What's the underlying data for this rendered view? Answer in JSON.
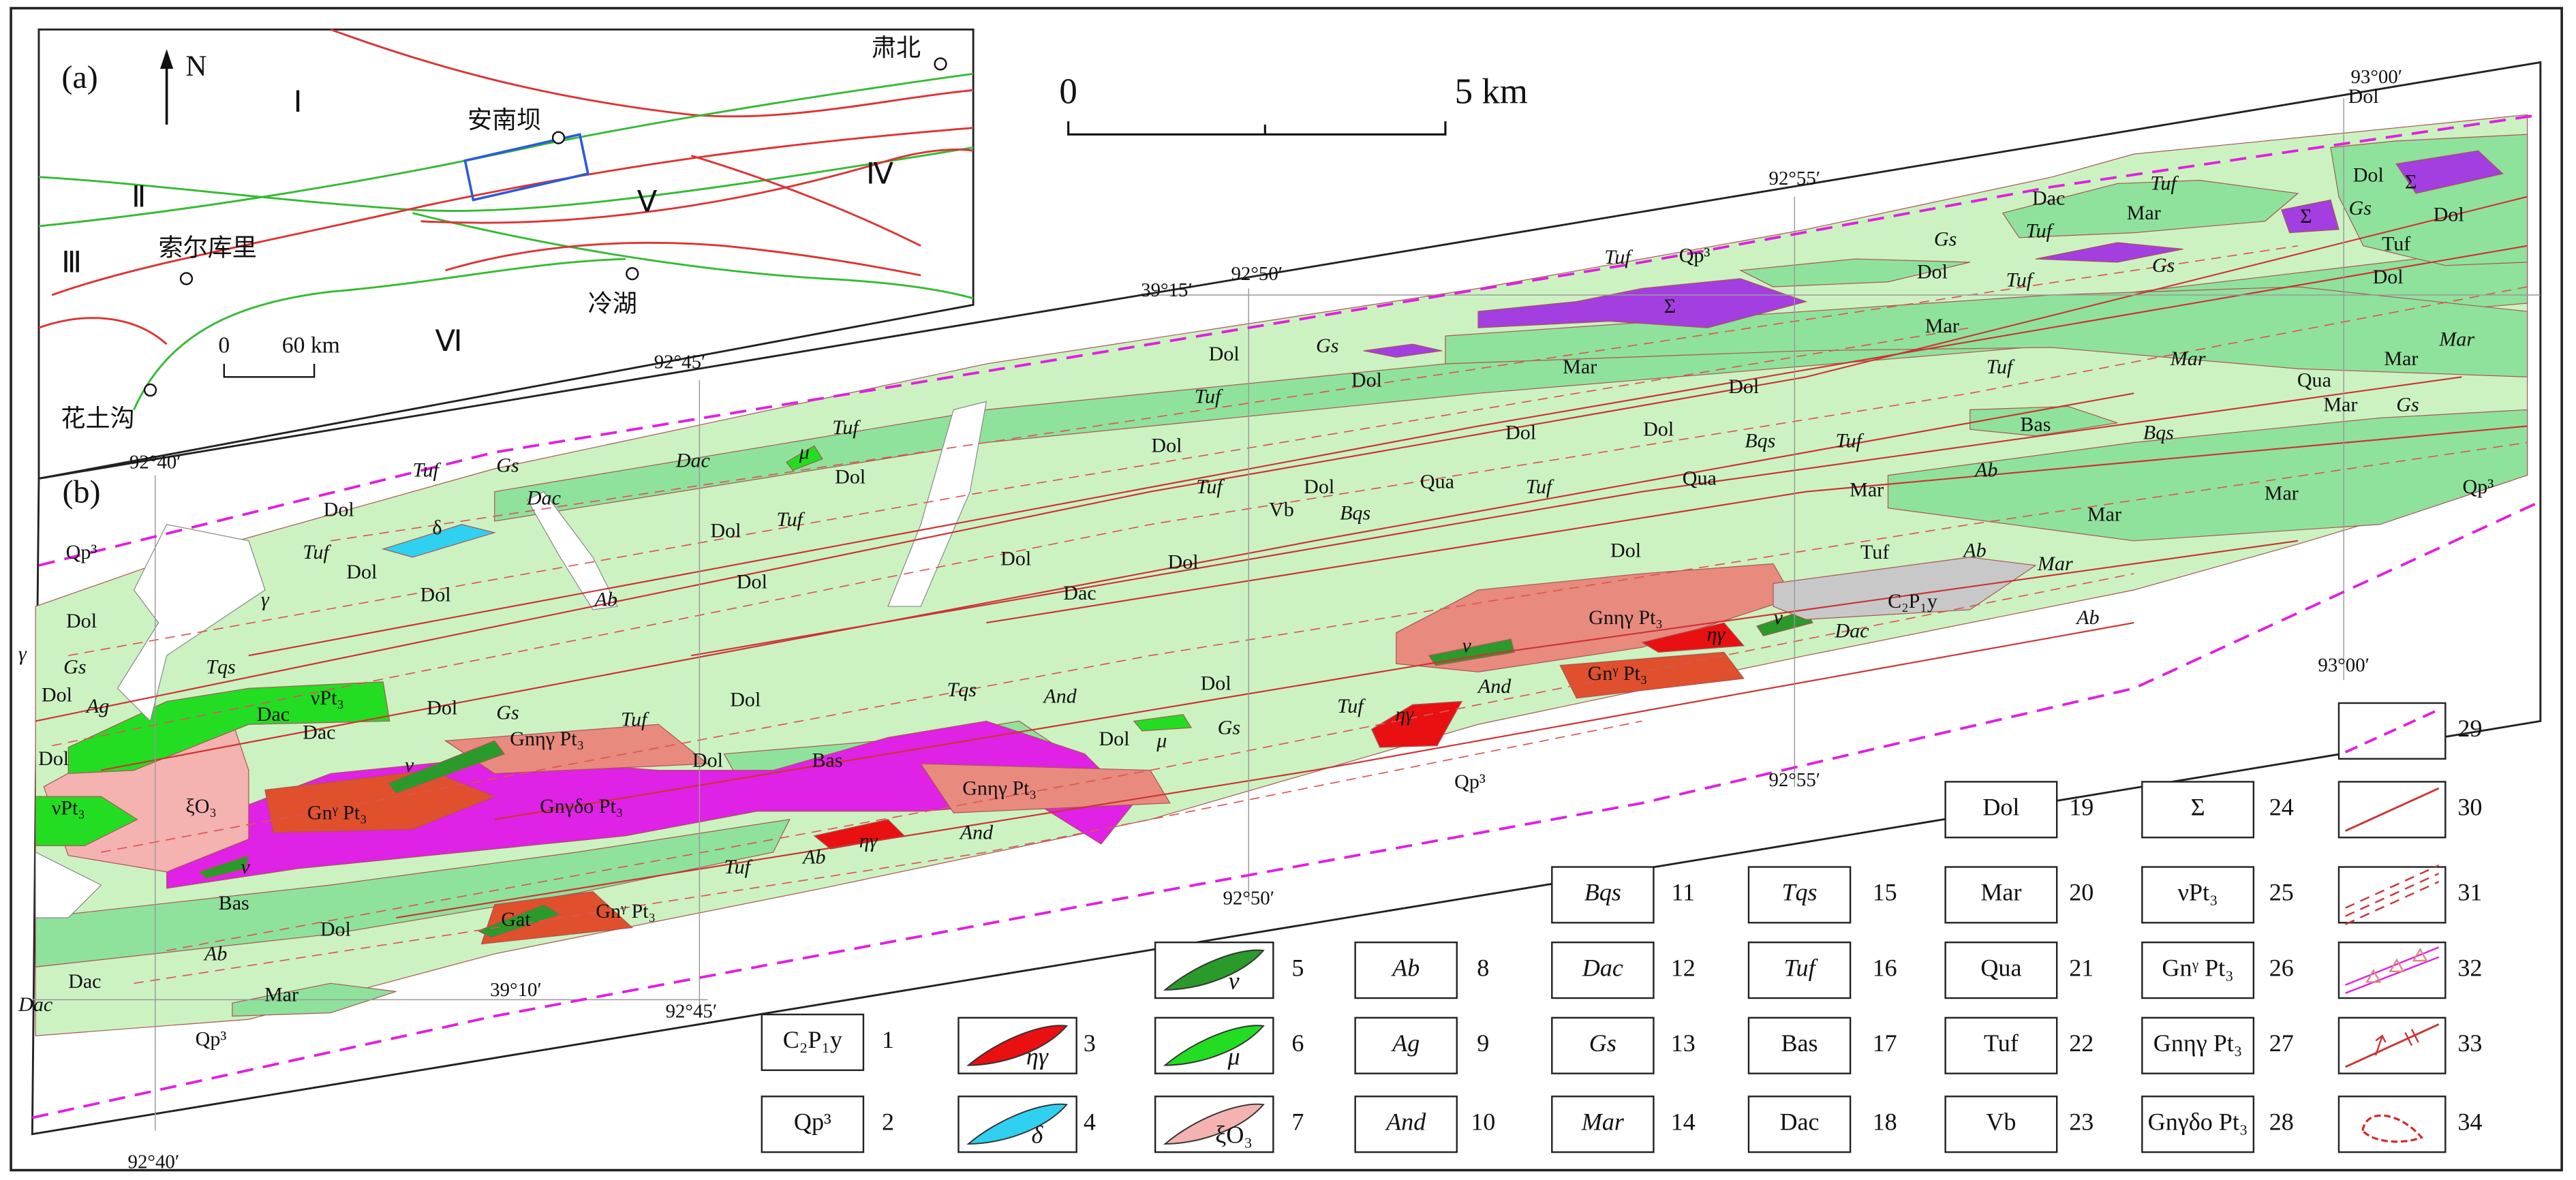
{
  "inset": {
    "panel_label": "(a)",
    "north": "N",
    "regions": [
      "Ⅰ",
      "Ⅱ",
      "Ⅲ",
      "Ⅳ",
      "Ⅴ",
      "Ⅵ"
    ],
    "places": [
      "肃北",
      "安南坝",
      "索尔库里",
      "冷湖",
      "花土沟"
    ],
    "scale": [
      "0",
      "60 km"
    ]
  },
  "map": {
    "panel_label": "(b)",
    "scale": [
      "0",
      "5 km"
    ],
    "coordinates": [
      "93°00′",
      "92°55′",
      "92°50′",
      "39°15′",
      "92°45′",
      "92°40′",
      "93°00′",
      "92°55′",
      "92°50′",
      "39°10′",
      "92°45′",
      "92°40′"
    ],
    "labels": [
      "Dac",
      "Tuf",
      "Mar",
      "Dol",
      "Σ",
      "Σ",
      "Gs",
      "Dol",
      "Tuf",
      "Dol",
      "Gs",
      "Tuf",
      "Dol",
      "Tuf",
      "Gs",
      "Tuf",
      "Qp³",
      "Σ",
      "Mar",
      "Mar",
      "Tuf",
      "Mar",
      "Qua",
      "Mar",
      "Mar",
      "Gs",
      "Mar",
      "Dol",
      "Gs",
      "Dol",
      "Tuf",
      "Dol",
      "Dol",
      "Dol",
      "Bqs",
      "Tuf",
      "Bas",
      "Bqs",
      "Ab",
      "Dol",
      "Dol",
      "Tuf",
      "Dac",
      "Gs",
      "Tuf",
      "Dac",
      "Dol",
      "Dol",
      "Tuf",
      "Tuf",
      "Dol",
      "Qua",
      "Tuf",
      "Qua",
      "Mar",
      "Mar",
      "Mar",
      "Qp³",
      "Vb",
      "Bqs",
      "Dol",
      "Tuf",
      "Ab",
      "Mar",
      "C₂P₁y",
      "Dol",
      "Dol",
      "Ab",
      "Tuf",
      "Dol",
      "δ",
      "Qp³",
      "Dol",
      "Dac",
      "Dol",
      "Gnηγ Pt₃",
      "ηγ",
      "ν",
      "Dac",
      "Ab",
      "Dol",
      "γ",
      "γ",
      "Tqs",
      "Gs",
      "Dol",
      "νPt₃",
      "Ag",
      "Dac",
      "Dac",
      "Dol",
      "Gs",
      "Tuf",
      "Gnηγ Pt₃",
      "Dol",
      "Tqs",
      "And",
      "Dol",
      "Tuf",
      "Gs",
      "Dol",
      "μ",
      "ν",
      "And",
      "ηγ",
      "Gnᵞ Pt₃",
      "Dol",
      "Dol",
      "Bas",
      "Gnηγ Pt₃",
      "νPt₃",
      "ξO₃",
      "ν",
      "Gnᵞ Pt₃",
      "Gnγδο Pt₃",
      "Qp³",
      "ηγ",
      "And",
      "Tuf",
      "Ab",
      "Bas",
      "ν",
      "Dol",
      "Gnᵞ Pt₃",
      "Gat",
      "Ab",
      "Dac",
      "Dac",
      "Mar",
      "Qp³",
      "μ",
      "Dol"
    ]
  },
  "legend": [
    {
      "label": "C₂P₁y",
      "number": 1
    },
    {
      "label": "Qp³",
      "number": 2
    },
    {
      "label": "ηγ",
      "number": 3
    },
    {
      "label": "δ",
      "number": 4
    },
    {
      "label": "ν",
      "number": 5
    },
    {
      "label": "μ",
      "number": 6
    },
    {
      "label": "ξO₃",
      "number": 7
    },
    {
      "label": "Ab",
      "number": 8
    },
    {
      "label": "Ag",
      "number": 9
    },
    {
      "label": "And",
      "number": 10
    },
    {
      "label": "Bqs",
      "number": 11
    },
    {
      "label": "Dac",
      "number": 12
    },
    {
      "label": "Gs",
      "number": 13
    },
    {
      "label": "Mar",
      "number": 14
    },
    {
      "label": "Tqs",
      "number": 15
    },
    {
      "label": "Tuf",
      "number": 16
    },
    {
      "label": "Bas",
      "number": 17
    },
    {
      "label": "Dac",
      "number": 18
    },
    {
      "label": "Dol",
      "number": 19
    },
    {
      "label": "Mar",
      "number": 20
    },
    {
      "label": "Qua",
      "number": 21
    },
    {
      "label": "Tuf",
      "number": 22
    },
    {
      "label": "Vb",
      "number": 23
    },
    {
      "label": "Σ",
      "number": 24
    },
    {
      "label": "νPt₃",
      "number": 25
    },
    {
      "label": "Gnᵞ Pt₃",
      "number": 26
    },
    {
      "label": "Gnηγ Pt₃",
      "number": 27
    },
    {
      "label": "Gnγδο Pt₃",
      "number": 28
    },
    {
      "number": 29
    },
    {
      "number": 30
    },
    {
      "number": 31
    },
    {
      "number": 32
    },
    {
      "number": 33
    },
    {
      "number": 34
    }
  ]
}
